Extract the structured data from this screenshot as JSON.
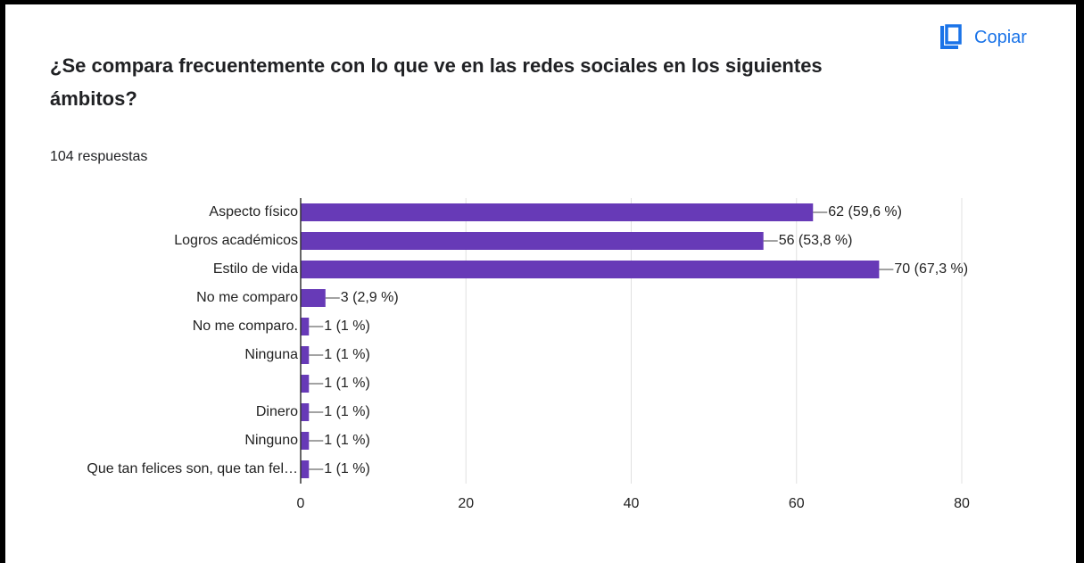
{
  "copy_button": "Copiar",
  "chart_data": {
    "type": "bar",
    "orientation": "horizontal",
    "title": "¿Se compara frecuentemente con lo que ve en las redes sociales en los siguientes ámbitos?",
    "subtitle": "104 respuestas",
    "categories": [
      "Aspecto físico",
      "Logros académicos",
      "Estilo de vida",
      "No me comparo",
      "No me comparo.",
      "Ninguna",
      null,
      "Dinero",
      "Ninguno",
      "Que tan felices son, que tan fel…"
    ],
    "values": [
      62,
      56,
      70,
      3,
      1,
      1,
      1,
      1,
      1,
      1
    ],
    "value_labels": [
      "62 (59,6 %)",
      "56 (53,8 %)",
      "70 (67,3 %)",
      "3 (2,9 %)",
      "1 (1 %)",
      "1 (1 %)",
      "1 (1 %)",
      "1 (1 %)",
      "1 (1 %)",
      "1 (1 %)"
    ],
    "color": "#673ab7",
    "xlim": [
      0,
      80
    ],
    "xticks": [
      0,
      20,
      40,
      60,
      80
    ],
    "grid": true
  }
}
